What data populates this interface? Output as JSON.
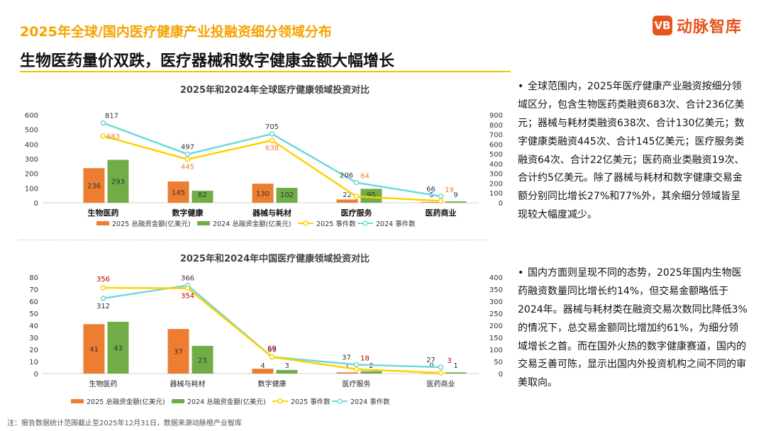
{
  "header": {
    "title": "2025年全球/国内医疗健康产业投融资细分领域分布",
    "subtitle": "生物医药量价双跌，医疗器械和数字健康金额大幅增长"
  },
  "logo": {
    "mark": "VB",
    "text": "动脉智库"
  },
  "colors": {
    "bar2025": "#ed7d31",
    "bar2024": "#70ad47",
    "line2025": "#ffd000",
    "line2024": "#6fd9d9",
    "labelRed": "#c00000",
    "labelOrange": "#ed7d31"
  },
  "legend": [
    "2025 总融资金额(亿美元)",
    "2024 总融资金额(亿美元)",
    "2025 事件数",
    "2024 事件数"
  ],
  "chart_data": [
    {
      "type": "bar",
      "title": "2025年和2024年全球医疗健康领域投资对比",
      "categories": [
        "生物医药",
        "数字健康",
        "器械与耗材",
        "医疗服务",
        "医药商业"
      ],
      "series": [
        {
          "name": "2025 总融资金额(亿美元)",
          "values": [
            236,
            145,
            130,
            22,
            5
          ],
          "axis": "left"
        },
        {
          "name": "2024 总融资金额(亿美元)",
          "values": [
            293,
            82,
            102,
            95,
            9
          ],
          "axis": "left"
        },
        {
          "name": "2025 事件数",
          "values": [
            683,
            445,
            638,
            64,
            19
          ],
          "axis": "right",
          "type": "line"
        },
        {
          "name": "2024 事件数",
          "values": [
            817,
            497,
            705,
            206,
            66
          ],
          "axis": "right",
          "type": "line"
        }
      ],
      "ylim": [
        0,
        600
      ],
      "yticks": [
        0,
        100,
        200,
        300,
        400,
        500,
        600
      ],
      "y2lim": [
        0,
        900
      ],
      "y2ticks": [
        0,
        100,
        200,
        300,
        400,
        500,
        600,
        700,
        800,
        900
      ]
    },
    {
      "type": "bar",
      "title": "2025年和2024年中国医疗健康领域投资对比",
      "categories": [
        "生物医药",
        "器械与耗材",
        "数字健康",
        "医疗服务",
        "医药商业"
      ],
      "series": [
        {
          "name": "2025 总融资金额(亿美元)",
          "values": [
            41,
            37,
            4,
            1,
            0
          ],
          "axis": "left"
        },
        {
          "name": "2024 总融资金额(亿美元)",
          "values": [
            43,
            23,
            3,
            2,
            1
          ],
          "axis": "left"
        },
        {
          "name": "2025 事件数",
          "values": [
            356,
            354,
            69,
            18,
            3
          ],
          "axis": "right",
          "type": "line"
        },
        {
          "name": "2024 事件数",
          "values": [
            312,
            366,
            69,
            37,
            27
          ],
          "axis": "right",
          "type": "line"
        }
      ],
      "ylim": [
        0,
        80
      ],
      "yticks": [
        0,
        10,
        20,
        30,
        40,
        50,
        60,
        70,
        80
      ],
      "y2lim": [
        0,
        400
      ],
      "y2ticks": [
        0,
        50,
        100,
        150,
        200,
        250,
        300,
        350,
        400
      ]
    }
  ],
  "text": {
    "p1": "全球范围内，2025年医疗健康产业融资按细分领域区分，包含生物医药类融资683次、合计236亿美元；器械与耗材类融资638次、合计130亿美元；数字健康类融资445次、合计145亿美元；医疗服务类融资64次、合计22亿美元；医药商业类融资19次、合计约5亿美元。除了器械与耗材和数字健康交易金额分别同比增长27%和77%外，其余细分领域皆呈现较大幅度减少。",
    "p2": "国内方面则呈现不同的态势，2025年国内生物医药融资数量同比增长约14%，但交易金额略低于2024年。器械与耗材类在融资交易次数同比降低3%的情况下，总交易金额同比增加约61%，为细分领域增长之首。而在国外火热的数字健康赛道，国内的交易乏善可陈，显示出国内外投资机构之间不同的审美取向。"
  },
  "footnote": "注：报告数据统计范围截止至2025年12月31日，数据来源动脉橙产业智库"
}
